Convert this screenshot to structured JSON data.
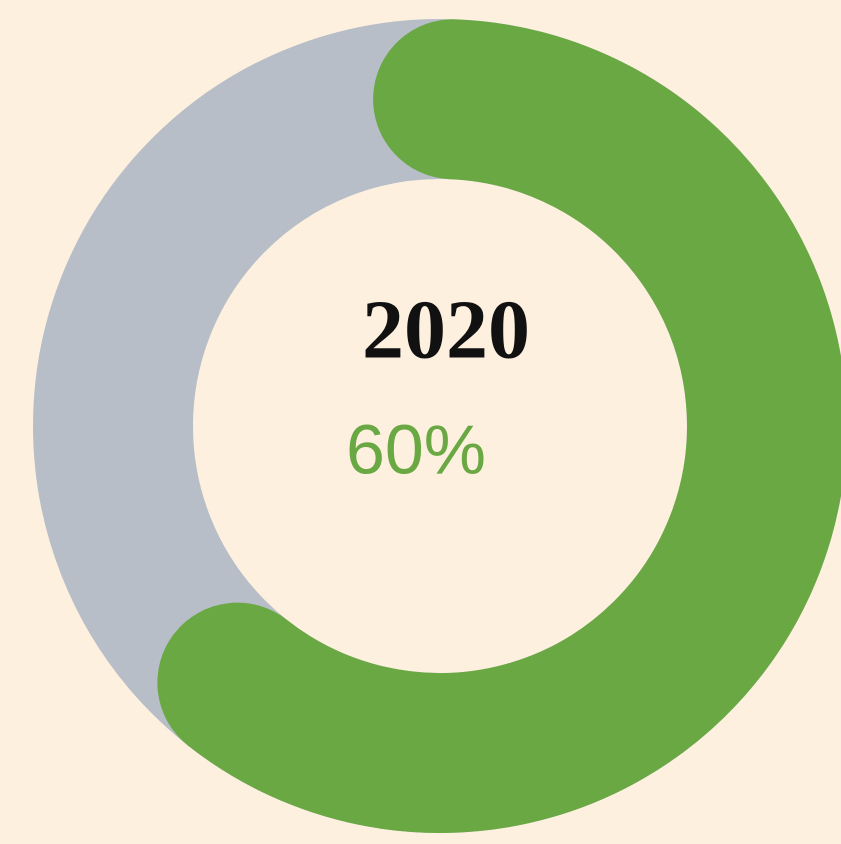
{
  "chart_data": {
    "type": "donut",
    "title": "2020",
    "value": 60,
    "value_label": "60%",
    "max": 100,
    "color": "#69a843",
    "track_color": "#b8bec7"
  }
}
